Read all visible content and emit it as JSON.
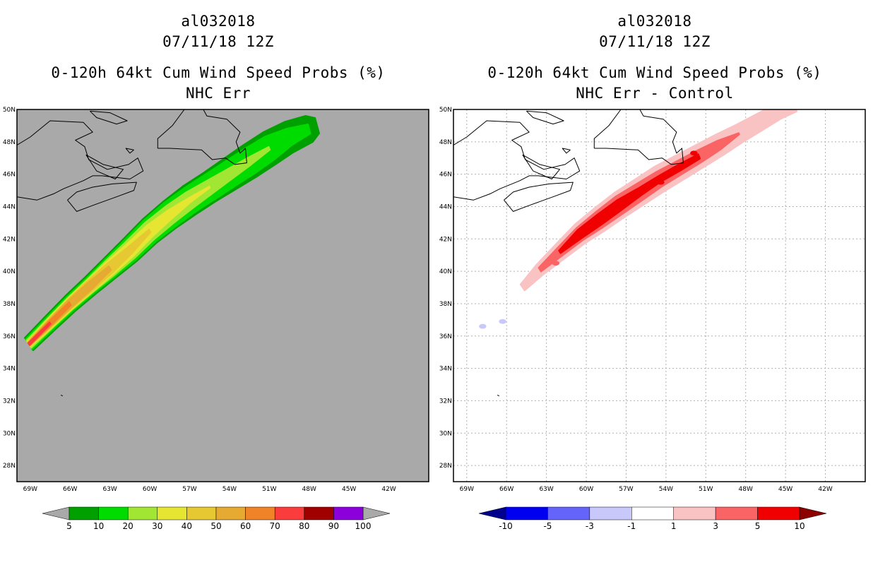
{
  "chart_data": [
    {
      "type": "heatmap",
      "storm_id": "al032018",
      "datetime": "07/11/18 12Z",
      "title": "0-120h 64kt Cum Wind Speed Probs (%)",
      "subtitle": "NHC Err",
      "background": "#a9a9a9",
      "xlim": [
        -70,
        -39
      ],
      "ylim": [
        27,
        50
      ],
      "x_ticks": [
        -69,
        -66,
        -63,
        -60,
        -57,
        -54,
        -51,
        -48,
        -45,
        -42
      ],
      "x_tick_labels": [
        "69W",
        "66W",
        "63W",
        "60W",
        "57W",
        "54W",
        "51W",
        "48W",
        "45W",
        "42W"
      ],
      "y_ticks": [
        28,
        30,
        32,
        34,
        36,
        38,
        40,
        42,
        44,
        46,
        48,
        50
      ],
      "y_tick_labels": [
        "28N",
        "30N",
        "32N",
        "34N",
        "36N",
        "38N",
        "40N",
        "42N",
        "44N",
        "46N",
        "48N",
        "50N"
      ],
      "grid": false,
      "track": {
        "lons": [
          -69.1,
          -67.5,
          -66.0,
          -64.5,
          -63.0,
          -61.5,
          -60.0,
          -58.5,
          -57.0,
          -55.5,
          -54.0,
          -52.5,
          -51.0,
          -49.5,
          -48.0,
          -47.4
        ],
        "lats": [
          35.5,
          36.8,
          38.0,
          39.1,
          40.2,
          41.3,
          42.5,
          43.5,
          44.4,
          45.2,
          46.0,
          46.8,
          47.6,
          48.3,
          48.8,
          49.0
        ]
      },
      "contours": [
        {
          "level": 5,
          "color": "#00a000",
          "widths": [
            0.5,
            0.55,
            0.6,
            0.65,
            0.75,
            0.85,
            0.9,
            0.95,
            1.0,
            1.0,
            1.05,
            1.1,
            1.1,
            1.0,
            0.85,
            0.5
          ]
        },
        {
          "level": 10,
          "color": "#00dc00",
          "widths": [
            0.4,
            0.45,
            0.5,
            0.55,
            0.65,
            0.75,
            0.8,
            0.85,
            0.85,
            0.85,
            0.85,
            0.85,
            0.8,
            0.55,
            0.3,
            0
          ]
        },
        {
          "level": 20,
          "color": "#a0e632",
          "widths": [
            0.3,
            0.35,
            0.4,
            0.45,
            0.55,
            0.6,
            0.62,
            0.6,
            0.55,
            0.45,
            0.35,
            0.25,
            0.1,
            0,
            0,
            0
          ]
        },
        {
          "level": 30,
          "color": "#e6e632",
          "widths": [
            0.2,
            0.3,
            0.35,
            0.4,
            0.45,
            0.45,
            0.4,
            0.3,
            0.15,
            0.05,
            0,
            0,
            0,
            0,
            0,
            0
          ]
        },
        {
          "level": 40,
          "color": "#e6c832",
          "widths": [
            0.15,
            0.25,
            0.3,
            0.35,
            0.35,
            0.25,
            0.1,
            0,
            0,
            0,
            0,
            0,
            0,
            0,
            0,
            0
          ]
        },
        {
          "level": 50,
          "color": "#e6aa32",
          "widths": [
            0.12,
            0.2,
            0.25,
            0.25,
            0.15,
            0,
            0,
            0,
            0,
            0,
            0,
            0,
            0,
            0,
            0,
            0
          ]
        },
        {
          "level": 60,
          "color": "#f08228",
          "widths": [
            0.1,
            0.15,
            0.12,
            0,
            0,
            0,
            0,
            0,
            0,
            0,
            0,
            0,
            0,
            0,
            0,
            0
          ]
        },
        {
          "level": 70,
          "color": "#fa3c3c",
          "widths": [
            0.08,
            0.06,
            0,
            0,
            0,
            0,
            0,
            0,
            0,
            0,
            0,
            0,
            0,
            0,
            0,
            0
          ]
        }
      ],
      "colorbar": {
        "levels": [
          "5",
          "10",
          "20",
          "30",
          "40",
          "50",
          "60",
          "70",
          "80",
          "90",
          "100"
        ],
        "colors": [
          "#00a000",
          "#00dc00",
          "#a0e632",
          "#e6e632",
          "#e6c832",
          "#e6aa32",
          "#f08228",
          "#fa3c3c",
          "#a00000",
          "#8c00dc"
        ],
        "under_color": "#a9a9a9",
        "over_color": "#a9a9a9"
      }
    },
    {
      "type": "heatmap",
      "storm_id": "al032018",
      "datetime": "07/11/18 12Z",
      "title": "0-120h 64kt Cum Wind Speed Probs (%)",
      "subtitle": "NHC Err - Control",
      "background": "#ffffff",
      "xlim": [
        -70,
        -39
      ],
      "ylim": [
        27,
        50
      ],
      "x_ticks": [
        -69,
        -66,
        -63,
        -60,
        -57,
        -54,
        -51,
        -48,
        -45,
        -42
      ],
      "x_tick_labels": [
        "69W",
        "66W",
        "63W",
        "60W",
        "57W",
        "54W",
        "51W",
        "48W",
        "45W",
        "42W"
      ],
      "y_ticks": [
        28,
        30,
        32,
        34,
        36,
        38,
        40,
        42,
        44,
        46,
        48,
        50
      ],
      "y_tick_labels": [
        "28N",
        "30N",
        "32N",
        "34N",
        "36N",
        "38N",
        "40N",
        "42N",
        "44N",
        "46N",
        "48N",
        "50N"
      ],
      "grid": true,
      "track": {
        "lons": [
          -64.8,
          -63.5,
          -62.0,
          -60.5,
          -59.0,
          -57.5,
          -56.0,
          -54.5,
          -53.0,
          -51.5,
          -50.0,
          -48.5,
          -47.0,
          -45.5,
          -44.3
        ],
        "lats": [
          39.0,
          40.1,
          41.2,
          42.3,
          43.2,
          44.1,
          44.9,
          45.7,
          46.4,
          47.1,
          47.8,
          48.5,
          49.2,
          49.9,
          50.3
        ]
      },
      "contours": [
        {
          "level": 1,
          "color": "#fac3c3",
          "widths": [
            0.25,
            0.4,
            0.55,
            0.7,
            0.8,
            0.85,
            0.85,
            0.85,
            0.8,
            0.75,
            0.7,
            0.6,
            0.55,
            0.5,
            0.45
          ]
        },
        {
          "level": 3,
          "color": "#fa6464",
          "widths": [
            0,
            0.15,
            0.3,
            0.45,
            0.55,
            0.6,
            0.55,
            0.5,
            0.45,
            0.4,
            0.3,
            0.05,
            0,
            0,
            0
          ]
        },
        {
          "level": 5,
          "color": "#f00000",
          "widths": [
            0,
            0,
            0.1,
            0.3,
            0.35,
            0.35,
            0.25,
            0.2,
            0.2,
            0.15,
            0,
            0,
            0,
            0,
            0
          ]
        }
      ],
      "extra_blobs": [
        {
          "lon": -67.8,
          "lat": 36.6,
          "color": "#c8c8fa"
        },
        {
          "lon": -66.3,
          "lat": 36.9,
          "color": "#c8c8fa"
        },
        {
          "lon": -62.3,
          "lat": 40.5,
          "color": "#fa6464"
        },
        {
          "lon": -54.4,
          "lat": 45.5,
          "color": "#f00000"
        },
        {
          "lon": -51.9,
          "lat": 47.3,
          "color": "#f00000"
        }
      ],
      "colorbar": {
        "levels": [
          "-10",
          "-5",
          "-3",
          "-1",
          "1",
          "3",
          "5",
          "10"
        ],
        "colors": [
          "#0000f0",
          "#6464fa",
          "#c8c8fa",
          "#ffffff",
          "#fac3c3",
          "#fa6464",
          "#f00000"
        ],
        "under_color": "#00008c",
        "over_color": "#8c0000"
      }
    }
  ]
}
